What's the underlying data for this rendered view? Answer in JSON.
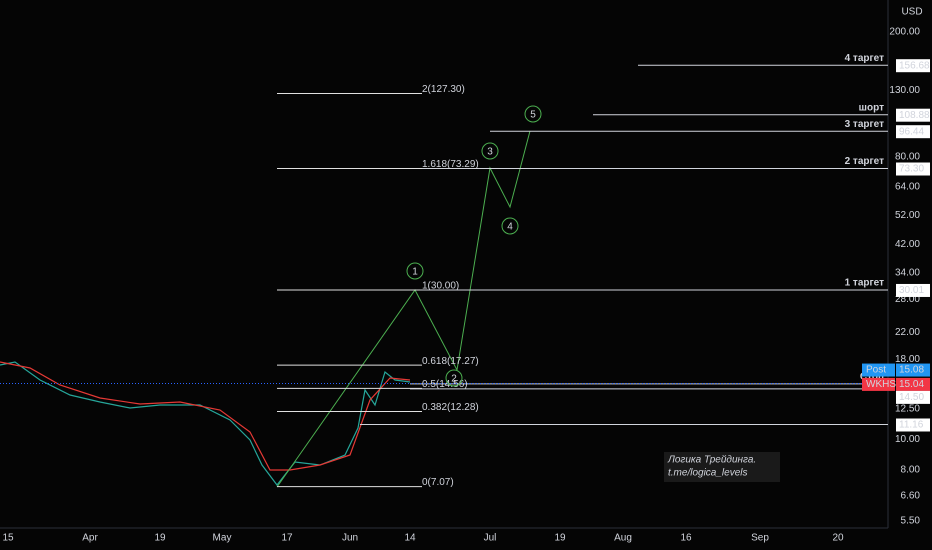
{
  "price_axis": {
    "currency": "USD",
    "ticks": [
      {
        "value": 200,
        "label": "200.00"
      },
      {
        "value": 130,
        "label": "130.00"
      },
      {
        "value": 80,
        "label": "80.00"
      },
      {
        "value": 64,
        "label": "64.00"
      },
      {
        "value": 52,
        "label": "52.00"
      },
      {
        "value": 42,
        "label": "42.00"
      },
      {
        "value": 34,
        "label": "34.00"
      },
      {
        "value": 28,
        "label": "28.00"
      },
      {
        "value": 22,
        "label": "22.00"
      },
      {
        "value": 18,
        "label": "18.00"
      },
      {
        "value": 12.5,
        "label": "12.50"
      },
      {
        "value": 10,
        "label": "10.00"
      },
      {
        "value": 8,
        "label": "8.00"
      },
      {
        "value": 6.6,
        "label": "6.60"
      },
      {
        "value": 5.5,
        "label": "5.50"
      }
    ]
  },
  "price_boxes": [
    {
      "value": 156.68,
      "label": "156.68"
    },
    {
      "value": 108.88,
      "label": "108.88"
    },
    {
      "value": 96.44,
      "label": "96.44"
    },
    {
      "value": 73.3,
      "label": "73.30"
    },
    {
      "value": 30.01,
      "label": "30.01"
    },
    {
      "value": 15.08,
      "label": "15.08",
      "tag": "Post"
    },
    {
      "value": 15.04,
      "label": "15.04",
      "tag": "WKHS"
    },
    {
      "value": 14.5,
      "label": "14.50"
    },
    {
      "value": 11.16,
      "label": "11.16"
    }
  ],
  "targets": [
    "4 таргет",
    "шорт",
    "3 таргет",
    "2 таргет",
    "1 таргет",
    "Стоп"
  ],
  "fib_levels": [
    {
      "value": 127.3,
      "label": "2(127.30)"
    },
    {
      "value": 73.29,
      "label": "1.618(73.29)"
    },
    {
      "value": 30,
      "label": "1(30.00)"
    },
    {
      "value": 17.27,
      "label": "0.618(17.27)"
    },
    {
      "value": 14.56,
      "label": "0.5(14.56)"
    },
    {
      "value": 12.28,
      "label": "0.382(12.28)"
    },
    {
      "value": 7.07,
      "label": "0(7.07)"
    }
  ],
  "waves": [
    "1",
    "2",
    "3",
    "4",
    "5"
  ],
  "time_axis": [
    "15",
    "Apr",
    "19",
    "May",
    "17",
    "Jun",
    "14",
    "Jul",
    "19",
    "Aug",
    "16",
    "Sep",
    "20"
  ],
  "watermark": [
    "Логика Трейдинга.",
    "t.me/logica_levels"
  ]
}
